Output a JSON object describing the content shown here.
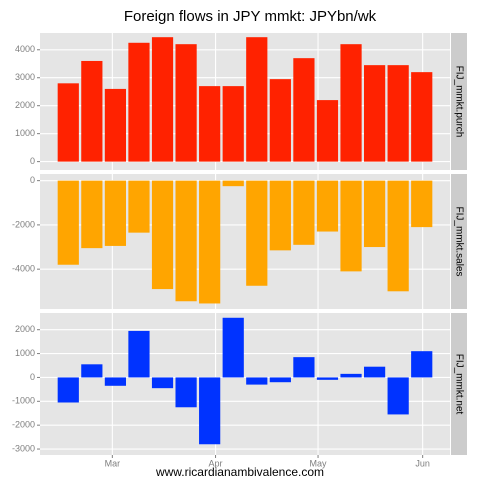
{
  "title": "Foreign flows in JPY mmkt: JPYbn/wk",
  "caption": "www.ricardianambivalence.com",
  "chart_data": [
    {
      "type": "bar",
      "strip": "FIJ_mmkt.purch",
      "color": "#ff2200",
      "categories": [
        null,
        null,
        null,
        null,
        null,
        null,
        null,
        null,
        null,
        null,
        null,
        null,
        null,
        null,
        null,
        null
      ],
      "values": [
        2800,
        3600,
        2600,
        4250,
        4450,
        4200,
        2700,
        2700,
        4450,
        2950,
        3700,
        2200,
        4200,
        3450,
        3450,
        3200
      ],
      "ylim": [
        -300,
        4600
      ],
      "yticks": [
        0,
        1000,
        2000,
        3000,
        4000
      ],
      "xlim": [
        -1.2,
        16.2
      ],
      "xticks": [
        {
          "value": 1.87,
          "label": "Mar"
        },
        {
          "value": 6.25,
          "label": "Apr"
        },
        {
          "value": 10.6,
          "label": "May"
        },
        {
          "value": 15.04,
          "label": "Jun"
        }
      ],
      "grid": true
    },
    {
      "type": "bar",
      "strip": "FIJ_mmkt.sales",
      "color": "#ffa500",
      "categories": [
        null,
        null,
        null,
        null,
        null,
        null,
        null,
        null,
        null,
        null,
        null,
        null,
        null,
        null,
        null,
        null
      ],
      "values": [
        -3800,
        -3050,
        -2950,
        -2350,
        -4900,
        -5450,
        -5550,
        -250,
        -4750,
        -3150,
        -2900,
        -2300,
        -4100,
        -3000,
        -5000,
        -2100
      ],
      "ylim": [
        -5800,
        300
      ],
      "yticks": [
        -4000,
        -2000,
        0
      ],
      "xlim": [
        -1.2,
        16.2
      ],
      "xticks": [
        {
          "value": 1.87,
          "label": "Mar"
        },
        {
          "value": 6.25,
          "label": "Apr"
        },
        {
          "value": 10.6,
          "label": "May"
        },
        {
          "value": 15.04,
          "label": "Jun"
        }
      ],
      "grid": true
    },
    {
      "type": "bar",
      "strip": "FIJ_mmkt.net",
      "color": "#0033ff",
      "categories": [
        null,
        null,
        null,
        null,
        null,
        null,
        null,
        null,
        null,
        null,
        null,
        null,
        null,
        null,
        null,
        null
      ],
      "values": [
        -1050,
        550,
        -350,
        1950,
        -450,
        -1250,
        -2800,
        2500,
        -300,
        -200,
        850,
        -100,
        150,
        450,
        -1550,
        1100
      ],
      "ylim": [
        -3250,
        2700
      ],
      "yticks": [
        -3000,
        -2000,
        -1000,
        0,
        1000,
        2000
      ],
      "xlim": [
        -1.2,
        16.2
      ],
      "xticks": [
        {
          "value": 1.87,
          "label": "Mar"
        },
        {
          "value": 6.25,
          "label": "Apr"
        },
        {
          "value": 10.6,
          "label": "May"
        },
        {
          "value": 15.04,
          "label": "Jun"
        }
      ],
      "grid": true
    }
  ]
}
